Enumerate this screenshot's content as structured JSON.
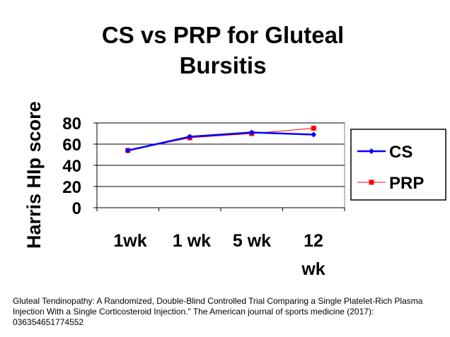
{
  "chart_data": {
    "type": "line",
    "title": "CS vs PRP for Gluteal Bursitis",
    "ylabel": "Harris HIp score",
    "xlabel": "",
    "categories": [
      "1wk",
      "1 wk",
      "5 wk",
      "12 wk"
    ],
    "ylim": [
      0,
      80
    ],
    "yticks": [
      0,
      20,
      40,
      60,
      80
    ],
    "grid": "horizontal",
    "legend": "right",
    "series": [
      {
        "name": "CS",
        "values": [
          54,
          67,
          71,
          69
        ],
        "color": "#0000ff",
        "marker": "diamond"
      },
      {
        "name": "PRP",
        "values": [
          54,
          66,
          70,
          75
        ],
        "color": "#ff0000",
        "marker": "square"
      }
    ]
  },
  "caption": "Gluteal Tendinopathy: A Randomized, Double-Blind Controlled Trial Comparing a Single Platelet-Rich Plasma Injection With a Single Corticosteroid Injection.\" The American journal of sports medicine (2017): 036354651774552"
}
